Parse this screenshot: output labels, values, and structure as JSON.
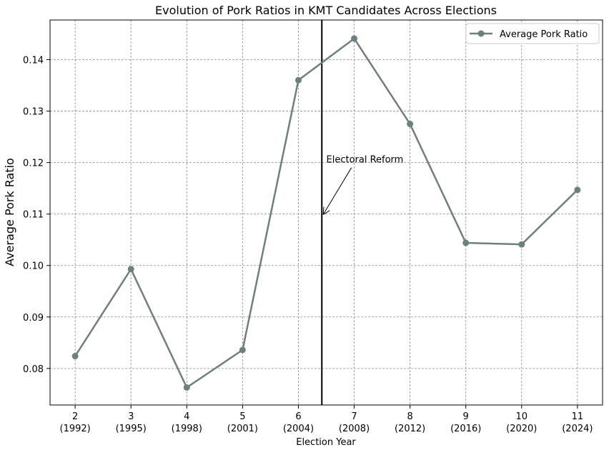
{
  "chart_data": {
    "type": "line",
    "title": "Evolution of Pork Ratios in KMT Candidates Across Elections",
    "xlabel": "Election Year",
    "ylabel": "Average Pork Ratio",
    "categories": [
      [
        "2",
        "(1992)"
      ],
      [
        "3",
        "(1995)"
      ],
      [
        "4",
        "(1998)"
      ],
      [
        "5",
        "(2001)"
      ],
      [
        "6",
        "(2004)"
      ],
      [
        "7",
        "(2008)"
      ],
      [
        "8",
        "(2012)"
      ],
      [
        "9",
        "(2016)"
      ],
      [
        "10",
        "(2020)"
      ],
      [
        "11",
        "(2024)"
      ]
    ],
    "x": [
      2,
      3,
      4,
      5,
      6,
      7,
      8,
      9,
      10,
      11
    ],
    "series": [
      {
        "name": "Average Pork Ratio",
        "color": "#6e7f80",
        "values": [
          0.0824,
          0.0993,
          0.0763,
          0.0836,
          0.136,
          0.1441,
          0.1275,
          0.1044,
          0.1041,
          0.1147
        ]
      }
    ],
    "xlim": [
      1.55,
      11.45
    ],
    "ylim": [
      0.0729,
      0.1477
    ],
    "yticks": [
      0.08,
      0.09,
      0.1,
      0.11,
      0.12,
      0.13,
      0.14
    ],
    "ytick_labels": [
      "0.08",
      "0.09",
      "0.10",
      "0.11",
      "0.12",
      "0.13",
      "0.14"
    ],
    "grid": true,
    "legend_position": "top-right",
    "vline": {
      "x": 6.42,
      "color": "#000000"
    },
    "annotation": {
      "text": "Electoral Reform",
      "text_x": 6.5,
      "text_y": 0.12,
      "arrow_from_x": 6.95,
      "arrow_from_y": 0.119,
      "arrow_to_x": 6.45,
      "arrow_to_y": 0.11
    }
  }
}
